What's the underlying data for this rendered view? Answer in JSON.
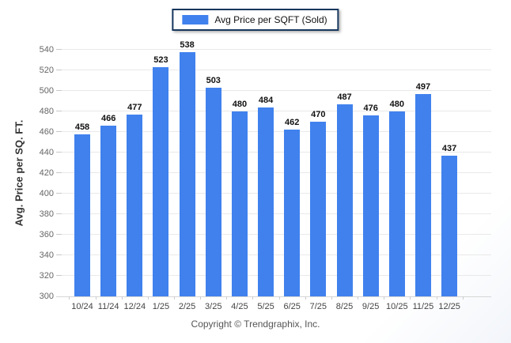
{
  "legend": {
    "label": "Avg Price per SQFT (Sold)",
    "swatch_color": "#4081ee"
  },
  "footer": {
    "text": "Copyright © Trendgraphix, Inc."
  },
  "chart_data": {
    "type": "bar",
    "title": "",
    "categories": [
      "10/24",
      "11/24",
      "12/24",
      "1/25",
      "2/25",
      "3/25",
      "4/25",
      "5/25",
      "6/25",
      "7/25",
      "8/25",
      "9/25",
      "10/25",
      "11/25",
      "12/25"
    ],
    "series": [
      {
        "name": "Avg Price per SQFT (Sold)",
        "values": [
          458,
          466,
          477,
          523,
          538,
          503,
          480,
          484,
          462,
          470,
          487,
          476,
          480,
          497,
          437
        ],
        "color": "#4081ee"
      }
    ],
    "xlabel": "",
    "ylabel": "Avg. Price per SQ. FT.",
    "ylim": [
      300,
      540
    ],
    "ytick_step": 20,
    "grid": "horizontal",
    "legend_position": "top-center",
    "value_labels": "above-bars"
  }
}
